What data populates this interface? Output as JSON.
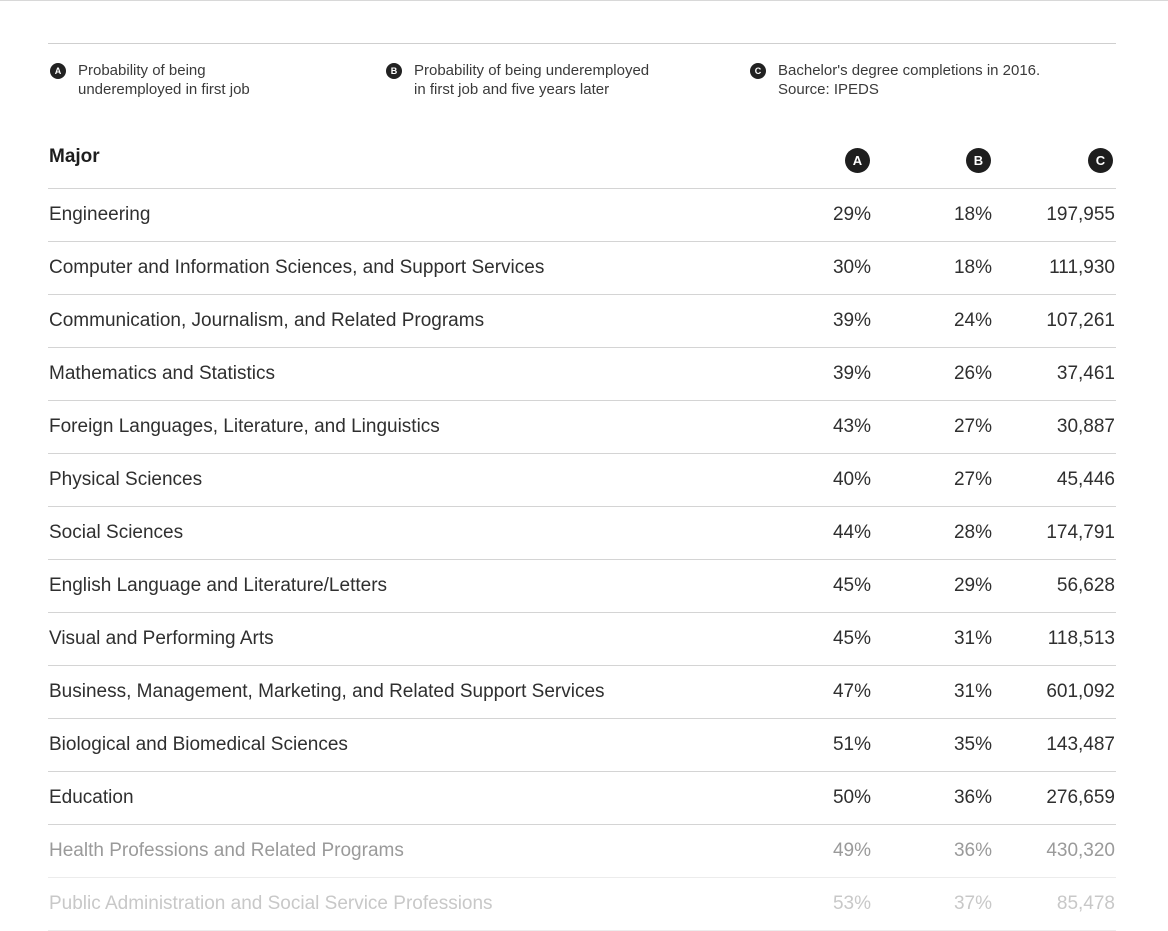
{
  "legend": [
    {
      "badge": "A",
      "text": "Probability of being\nunderemployed in first job"
    },
    {
      "badge": "B",
      "text": "Probability of being underemployed\nin first job and five years later"
    },
    {
      "badge": "C",
      "text": "Bachelor's degree completions in 2016.\nSource: IPEDS"
    }
  ],
  "table": {
    "header": {
      "major": "Major",
      "a": "A",
      "b": "B",
      "c": "C"
    },
    "rows": [
      {
        "major": "Engineering",
        "a": "29%",
        "b": "18%",
        "c": "197,955"
      },
      {
        "major": "Computer and Information Sciences, and Support Services",
        "a": "30%",
        "b": "18%",
        "c": "111,930"
      },
      {
        "major": "Communication, Journalism, and Related Programs",
        "a": "39%",
        "b": "24%",
        "c": "107,261"
      },
      {
        "major": "Mathematics and Statistics",
        "a": "39%",
        "b": "26%",
        "c": "37,461"
      },
      {
        "major": "Foreign Languages, Literature, and Linguistics",
        "a": "43%",
        "b": "27%",
        "c": "30,887"
      },
      {
        "major": "Physical Sciences",
        "a": "40%",
        "b": "27%",
        "c": "45,446"
      },
      {
        "major": "Social Sciences",
        "a": "44%",
        "b": "28%",
        "c": "174,791"
      },
      {
        "major": "English Language and Literature/Letters",
        "a": "45%",
        "b": "29%",
        "c": "56,628"
      },
      {
        "major": "Visual and Performing Arts",
        "a": "45%",
        "b": "31%",
        "c": "118,513"
      },
      {
        "major": "Business, Management, Marketing, and Related Support Services",
        "a": "47%",
        "b": "31%",
        "c": "601,092"
      },
      {
        "major": "Biological and Biomedical Sciences",
        "a": "51%",
        "b": "35%",
        "c": "143,487"
      },
      {
        "major": "Education",
        "a": "50%",
        "b": "36%",
        "c": "276,659"
      },
      {
        "major": "Health Professions and Related Programs",
        "a": "49%",
        "b": "36%",
        "c": "430,320"
      },
      {
        "major": "Public Administration and Social Service Professions",
        "a": "53%",
        "b": "37%",
        "c": "85,478"
      }
    ]
  }
}
